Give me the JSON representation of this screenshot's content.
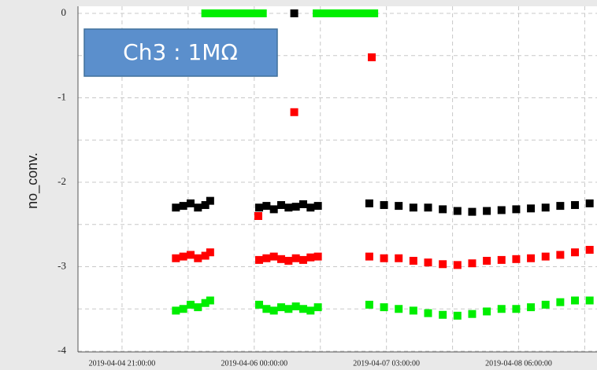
{
  "chart_data": {
    "type": "scatter",
    "ylabel": "no_conv.",
    "annotation": "Ch3 : 1MΩ",
    "xlim": [
      "2019-04-04 12:00:00",
      "2019-04-08 22:00:00"
    ],
    "xticks": [
      "2019-04-04 21:00:00",
      "2019-04-06 00:00:00",
      "2019-04-07 03:00:00",
      "2019-04-08 06:00:00"
    ],
    "ylim": [
      -4,
      0
    ],
    "yticks": [
      -4,
      -3,
      -2,
      -1,
      0
    ],
    "grid": true,
    "series": [
      {
        "color": "#000000",
        "x": [
          "2019-04-05 08:00:00",
          "2019-04-05 09:30:00",
          "2019-04-05 11:00:00",
          "2019-04-05 12:30:00",
          "2019-04-05 14:00:00",
          "2019-04-05 15:00:00",
          "2019-04-06 01:00:00",
          "2019-04-06 02:30:00",
          "2019-04-06 04:00:00",
          "2019-04-06 05:30:00",
          "2019-04-06 07:00:00",
          "2019-04-06 08:30:00",
          "2019-04-06 10:00:00",
          "2019-04-06 11:30:00",
          "2019-04-06 13:00:00",
          "2019-04-06 08:10:00",
          "2019-04-06 23:30:00",
          "2019-04-07 02:30:00",
          "2019-04-07 05:30:00",
          "2019-04-07 08:30:00",
          "2019-04-07 11:30:00",
          "2019-04-07 14:30:00",
          "2019-04-07 17:30:00",
          "2019-04-07 20:30:00",
          "2019-04-07 23:30:00",
          "2019-04-08 02:30:00",
          "2019-04-08 05:30:00",
          "2019-04-08 08:30:00",
          "2019-04-08 11:30:00",
          "2019-04-08 14:30:00",
          "2019-04-08 17:30:00",
          "2019-04-08 20:30:00"
        ],
        "values": [
          -2.3,
          -2.28,
          -2.25,
          -2.3,
          -2.27,
          -2.22,
          -2.3,
          -2.28,
          -2.32,
          -2.27,
          -2.3,
          -2.29,
          -2.26,
          -2.3,
          -2.28,
          0,
          -2.25,
          -2.27,
          -2.28,
          -2.3,
          -2.3,
          -2.32,
          -2.34,
          -2.35,
          -2.34,
          -2.33,
          -2.32,
          -2.31,
          -2.3,
          -2.28,
          -2.27,
          -2.25
        ]
      },
      {
        "color": "#ff0000",
        "x": [
          "2019-04-05 08:00:00",
          "2019-04-05 09:30:00",
          "2019-04-05 11:00:00",
          "2019-04-05 12:30:00",
          "2019-04-05 14:00:00",
          "2019-04-05 15:00:00",
          "2019-04-06 01:00:00",
          "2019-04-06 02:30:00",
          "2019-04-06 04:00:00",
          "2019-04-06 05:30:00",
          "2019-04-06 07:00:00",
          "2019-04-06 08:30:00",
          "2019-04-06 10:00:00",
          "2019-04-06 11:30:00",
          "2019-04-06 13:00:00",
          "2019-04-06 00:50:00",
          "2019-04-06 08:10:00",
          "2019-04-07 00:00:00",
          "2019-04-06 23:30:00",
          "2019-04-07 02:30:00",
          "2019-04-07 05:30:00",
          "2019-04-07 08:30:00",
          "2019-04-07 11:30:00",
          "2019-04-07 14:30:00",
          "2019-04-07 17:30:00",
          "2019-04-07 20:30:00",
          "2019-04-07 23:30:00",
          "2019-04-08 02:30:00",
          "2019-04-08 05:30:00",
          "2019-04-08 08:30:00",
          "2019-04-08 11:30:00",
          "2019-04-08 14:30:00",
          "2019-04-08 17:30:00",
          "2019-04-08 20:30:00"
        ],
        "values": [
          -2.9,
          -2.88,
          -2.86,
          -2.9,
          -2.87,
          -2.83,
          -2.92,
          -2.9,
          -2.88,
          -2.91,
          -2.93,
          -2.9,
          -2.92,
          -2.89,
          -2.88,
          -2.4,
          -1.17,
          -0.52,
          -2.88,
          -2.9,
          -2.9,
          -2.93,
          -2.95,
          -2.97,
          -2.98,
          -2.96,
          -2.93,
          -2.92,
          -2.91,
          -2.9,
          -2.88,
          -2.86,
          -2.83,
          -2.8
        ]
      },
      {
        "color": "#00ee00",
        "x": [
          "2019-04-05 08:00:00",
          "2019-04-05 09:30:00",
          "2019-04-05 11:00:00",
          "2019-04-05 12:30:00",
          "2019-04-05 14:00:00",
          "2019-04-05 15:00:00",
          "2019-04-06 01:00:00",
          "2019-04-06 02:30:00",
          "2019-04-06 04:00:00",
          "2019-04-06 05:30:00",
          "2019-04-06 07:00:00",
          "2019-04-06 08:30:00",
          "2019-04-06 10:00:00",
          "2019-04-06 11:30:00",
          "2019-04-06 13:00:00",
          "2019-04-05 14:00:00",
          "2019-04-05 15:30:00",
          "2019-04-05 17:00:00",
          "2019-04-05 18:30:00",
          "2019-04-05 20:00:00",
          "2019-04-05 21:30:00",
          "2019-04-05 23:00:00",
          "2019-04-06 00:30:00",
          "2019-04-06 01:45:00",
          "2019-04-06 12:45:00",
          "2019-04-06 14:15:00",
          "2019-04-06 15:45:00",
          "2019-04-06 17:15:00",
          "2019-04-06 18:45:00",
          "2019-04-06 20:15:00",
          "2019-04-06 21:45:00",
          "2019-04-06 23:15:00",
          "2019-04-07 00:30:00",
          "2019-04-06 23:30:00",
          "2019-04-07 02:30:00",
          "2019-04-07 05:30:00",
          "2019-04-07 08:30:00",
          "2019-04-07 11:30:00",
          "2019-04-07 14:30:00",
          "2019-04-07 17:30:00",
          "2019-04-07 20:30:00",
          "2019-04-07 23:30:00",
          "2019-04-08 02:30:00",
          "2019-04-08 05:30:00",
          "2019-04-08 08:30:00",
          "2019-04-08 11:30:00",
          "2019-04-08 14:30:00",
          "2019-04-08 17:30:00",
          "2019-04-08 20:30:00"
        ],
        "values": [
          -3.52,
          -3.5,
          -3.45,
          -3.48,
          -3.43,
          -3.4,
          -3.45,
          -3.5,
          -3.52,
          -3.48,
          -3.5,
          -3.47,
          -3.5,
          -3.52,
          -3.48,
          0,
          0,
          0,
          0,
          0,
          0,
          0,
          0,
          0,
          0,
          0,
          0,
          0,
          0,
          0,
          0,
          0,
          0,
          -3.45,
          -3.48,
          -3.5,
          -3.52,
          -3.55,
          -3.57,
          -3.58,
          -3.56,
          -3.53,
          -3.5,
          -3.5,
          -3.48,
          -3.45,
          -3.42,
          -3.4,
          -3.4
        ]
      }
    ]
  }
}
